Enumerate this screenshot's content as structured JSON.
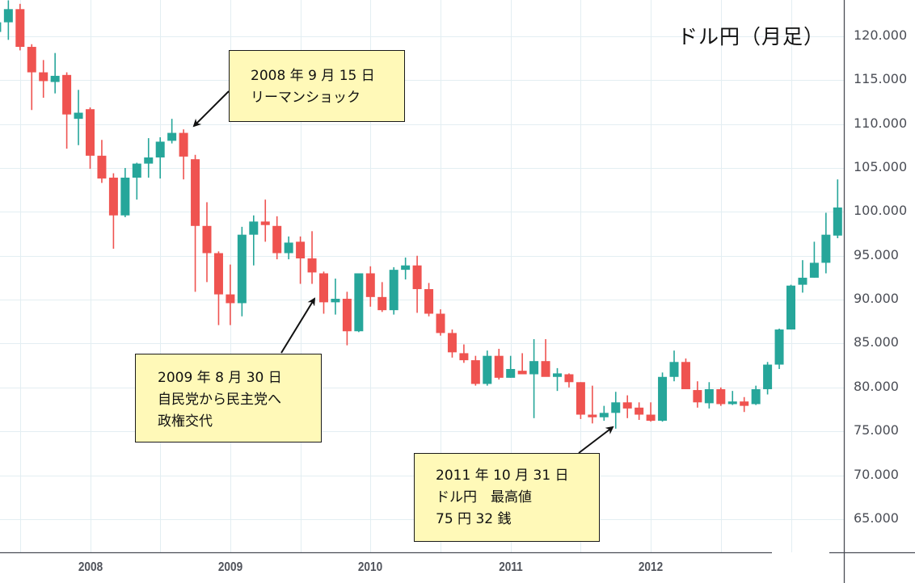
{
  "title": "ドル円（月足）",
  "colors": {
    "up": "#26a69a",
    "down": "#ef5350",
    "grid": "#e3eef2",
    "axis": "#4a4d55",
    "note_bg": "#fff9b8"
  },
  "annotations": [
    {
      "id": "lehman",
      "lines": [
        "2008 年 9 月 15 日",
        "リーマンショック"
      ]
    },
    {
      "id": "dpj",
      "lines": [
        "2009 年 8 月 30 日",
        "自民党から民主党へ",
        "政権交代"
      ]
    },
    {
      "id": "record",
      "lines": [
        "2011 年 10 月 31 日",
        "ドル円　最高値",
        "75 円 32 銭"
      ]
    }
  ],
  "chart_data": {
    "type": "candlestick",
    "title": "ドル円（月足）",
    "xlabel": "",
    "ylabel": "",
    "x_ticks": [
      "2008",
      "2009",
      "2010",
      "2011",
      "2012"
    ],
    "y_ticks": [
      "120.000",
      "115.000",
      "110.000",
      "105.000",
      "100.000",
      "95.000",
      "90.000",
      "85.000",
      "80.000",
      "75.000",
      "70.000",
      "65.000"
    ],
    "ylim": [
      61,
      124.2
    ],
    "grid": true,
    "candles": [
      {
        "m": "2007-05",
        "o": 120.5,
        "h": 122.0,
        "l": 118.9,
        "c": 121.6
      },
      {
        "m": "2007-06",
        "o": 121.6,
        "h": 124.1,
        "l": 119.6,
        "c": 123.1
      },
      {
        "m": "2007-07",
        "o": 123.1,
        "h": 123.7,
        "l": 118.4,
        "c": 118.8
      },
      {
        "m": "2007-08",
        "o": 118.8,
        "h": 119.1,
        "l": 111.6,
        "c": 115.9
      },
      {
        "m": "2007-09",
        "o": 115.9,
        "h": 117.3,
        "l": 113.0,
        "c": 114.9
      },
      {
        "m": "2007-10",
        "o": 114.8,
        "h": 118.1,
        "l": 113.5,
        "c": 115.5
      },
      {
        "m": "2007-11",
        "o": 115.6,
        "h": 115.9,
        "l": 107.2,
        "c": 111.1
      },
      {
        "m": "2007-12",
        "o": 110.6,
        "h": 113.9,
        "l": 107.6,
        "c": 111.3
      },
      {
        "m": "2008-01",
        "o": 111.7,
        "h": 111.9,
        "l": 104.9,
        "c": 106.4
      },
      {
        "m": "2008-02",
        "o": 106.4,
        "h": 108.2,
        "l": 103.3,
        "c": 103.8
      },
      {
        "m": "2008-03",
        "o": 103.9,
        "h": 104.4,
        "l": 95.8,
        "c": 99.6
      },
      {
        "m": "2008-04",
        "o": 99.6,
        "h": 105.0,
        "l": 99.4,
        "c": 103.9
      },
      {
        "m": "2008-05",
        "o": 103.9,
        "h": 105.6,
        "l": 101.4,
        "c": 105.5
      },
      {
        "m": "2008-06",
        "o": 105.5,
        "h": 108.4,
        "l": 103.9,
        "c": 106.2
      },
      {
        "m": "2008-07",
        "o": 106.2,
        "h": 108.5,
        "l": 103.8,
        "c": 108.0
      },
      {
        "m": "2008-08",
        "o": 108.1,
        "h": 110.6,
        "l": 107.8,
        "c": 109.0
      },
      {
        "m": "2008-09",
        "o": 109.0,
        "h": 109.4,
        "l": 103.7,
        "c": 106.3
      },
      {
        "m": "2008-10",
        "o": 106.0,
        "h": 106.5,
        "l": 90.9,
        "c": 98.4
      },
      {
        "m": "2008-11",
        "o": 98.4,
        "h": 101.1,
        "l": 92.0,
        "c": 95.3
      },
      {
        "m": "2008-12",
        "o": 95.3,
        "h": 95.5,
        "l": 87.1,
        "c": 90.6
      },
      {
        "m": "2009-01",
        "o": 90.6,
        "h": 94.0,
        "l": 87.1,
        "c": 89.6
      },
      {
        "m": "2009-02",
        "o": 89.6,
        "h": 98.3,
        "l": 88.1,
        "c": 97.4
      },
      {
        "m": "2009-03",
        "o": 97.4,
        "h": 99.6,
        "l": 93.9,
        "c": 98.9
      },
      {
        "m": "2009-04",
        "o": 98.9,
        "h": 101.4,
        "l": 96.6,
        "c": 98.5
      },
      {
        "m": "2009-05",
        "o": 98.4,
        "h": 99.5,
        "l": 94.6,
        "c": 95.3
      },
      {
        "m": "2009-06",
        "o": 95.3,
        "h": 97.2,
        "l": 94.6,
        "c": 96.5
      },
      {
        "m": "2009-07",
        "o": 96.6,
        "h": 97.2,
        "l": 91.8,
        "c": 94.7
      },
      {
        "m": "2009-08",
        "o": 94.7,
        "h": 97.8,
        "l": 91.8,
        "c": 93.1
      },
      {
        "m": "2009-09",
        "o": 93.0,
        "h": 93.2,
        "l": 88.4,
        "c": 89.7
      },
      {
        "m": "2009-10",
        "o": 89.7,
        "h": 92.4,
        "l": 88.3,
        "c": 90.1
      },
      {
        "m": "2009-11",
        "o": 90.1,
        "h": 90.9,
        "l": 84.8,
        "c": 86.4
      },
      {
        "m": "2009-12",
        "o": 86.4,
        "h": 93.0,
        "l": 86.3,
        "c": 93.0
      },
      {
        "m": "2010-01",
        "o": 93.0,
        "h": 93.8,
        "l": 89.2,
        "c": 90.3
      },
      {
        "m": "2010-02",
        "o": 90.3,
        "h": 92.0,
        "l": 88.6,
        "c": 88.8
      },
      {
        "m": "2010-03",
        "o": 88.8,
        "h": 93.7,
        "l": 88.3,
        "c": 93.4
      },
      {
        "m": "2010-04",
        "o": 93.4,
        "h": 94.8,
        "l": 92.3,
        "c": 93.9
      },
      {
        "m": "2010-05",
        "o": 93.9,
        "h": 95.0,
        "l": 88.5,
        "c": 91.2
      },
      {
        "m": "2010-06",
        "o": 91.2,
        "h": 91.9,
        "l": 88.1,
        "c": 88.4
      },
      {
        "m": "2010-07",
        "o": 88.4,
        "h": 88.9,
        "l": 85.9,
        "c": 86.2
      },
      {
        "m": "2010-08",
        "o": 86.2,
        "h": 86.6,
        "l": 83.4,
        "c": 84.0
      },
      {
        "m": "2010-09",
        "o": 83.9,
        "h": 84.9,
        "l": 82.8,
        "c": 83.1
      },
      {
        "m": "2010-10",
        "o": 83.1,
        "h": 83.6,
        "l": 80.2,
        "c": 80.4
      },
      {
        "m": "2010-11",
        "o": 80.4,
        "h": 84.2,
        "l": 80.2,
        "c": 83.6
      },
      {
        "m": "2010-12",
        "o": 83.6,
        "h": 84.4,
        "l": 80.9,
        "c": 81.1
      },
      {
        "m": "2011-01",
        "o": 81.1,
        "h": 83.6,
        "l": 81.1,
        "c": 82.1
      },
      {
        "m": "2011-02",
        "o": 81.9,
        "h": 83.9,
        "l": 81.5,
        "c": 81.5
      },
      {
        "m": "2011-03",
        "o": 81.5,
        "h": 85.5,
        "l": 76.5,
        "c": 83.0
      },
      {
        "m": "2011-04",
        "o": 83.0,
        "h": 85.5,
        "l": 81.5,
        "c": 81.2
      },
      {
        "m": "2011-05",
        "o": 81.2,
        "h": 82.2,
        "l": 79.6,
        "c": 81.6
      },
      {
        "m": "2011-06",
        "o": 81.5,
        "h": 81.6,
        "l": 80.0,
        "c": 80.6
      },
      {
        "m": "2011-07",
        "o": 80.6,
        "h": 80.6,
        "l": 76.4,
        "c": 76.9
      },
      {
        "m": "2011-08",
        "o": 76.9,
        "h": 80.2,
        "l": 75.9,
        "c": 76.6
      },
      {
        "m": "2011-09",
        "o": 76.6,
        "h": 77.9,
        "l": 76.2,
        "c": 77.1
      },
      {
        "m": "2011-10",
        "o": 77.1,
        "h": 79.5,
        "l": 75.3,
        "c": 78.3
      },
      {
        "m": "2011-11",
        "o": 78.3,
        "h": 79.1,
        "l": 76.5,
        "c": 77.6
      },
      {
        "m": "2011-12",
        "o": 77.7,
        "h": 78.3,
        "l": 76.3,
        "c": 76.9
      },
      {
        "m": "2012-01",
        "o": 76.9,
        "h": 78.3,
        "l": 76.1,
        "c": 76.2
      },
      {
        "m": "2012-02",
        "o": 76.2,
        "h": 81.7,
        "l": 76.1,
        "c": 81.2
      },
      {
        "m": "2012-03",
        "o": 81.2,
        "h": 84.2,
        "l": 80.7,
        "c": 82.9
      },
      {
        "m": "2012-04",
        "o": 82.9,
        "h": 83.3,
        "l": 79.9,
        "c": 79.8
      },
      {
        "m": "2012-05",
        "o": 79.7,
        "h": 80.7,
        "l": 77.7,
        "c": 78.3
      },
      {
        "m": "2012-06",
        "o": 78.2,
        "h": 80.6,
        "l": 77.6,
        "c": 79.8
      },
      {
        "m": "2012-07",
        "o": 79.8,
        "h": 80.0,
        "l": 77.9,
        "c": 78.1
      },
      {
        "m": "2012-08",
        "o": 78.1,
        "h": 79.6,
        "l": 78.0,
        "c": 78.4
      },
      {
        "m": "2012-09",
        "o": 78.4,
        "h": 78.9,
        "l": 77.2,
        "c": 77.9
      },
      {
        "m": "2012-10",
        "o": 78.1,
        "h": 80.2,
        "l": 78.0,
        "c": 79.8
      },
      {
        "m": "2012-11",
        "o": 79.8,
        "h": 82.9,
        "l": 79.2,
        "c": 82.6
      },
      {
        "m": "2012-12",
        "o": 82.6,
        "h": 86.7,
        "l": 82.1,
        "c": 86.6
      },
      {
        "m": "2013-01",
        "o": 86.6,
        "h": 91.7,
        "l": 86.6,
        "c": 91.6
      },
      {
        "m": "2013-02",
        "o": 91.7,
        "h": 94.5,
        "l": 90.8,
        "c": 92.5
      },
      {
        "m": "2013-03",
        "o": 92.5,
        "h": 96.6,
        "l": 92.5,
        "c": 94.2
      },
      {
        "m": "2013-04",
        "o": 94.2,
        "h": 99.9,
        "l": 93.0,
        "c": 97.4
      },
      {
        "m": "2013-05",
        "o": 97.3,
        "h": 103.7,
        "l": 97.0,
        "c": 100.5
      }
    ]
  },
  "x_axis": {
    "labels": [
      "2008",
      "2009",
      "2010",
      "2011",
      "2012"
    ]
  },
  "y_axis": {
    "labels": [
      "120.000",
      "115.000",
      "110.000",
      "105.000",
      "100.000",
      "95.000",
      "90.000",
      "85.000",
      "80.000",
      "75.000",
      "70.000",
      "65.000"
    ]
  }
}
